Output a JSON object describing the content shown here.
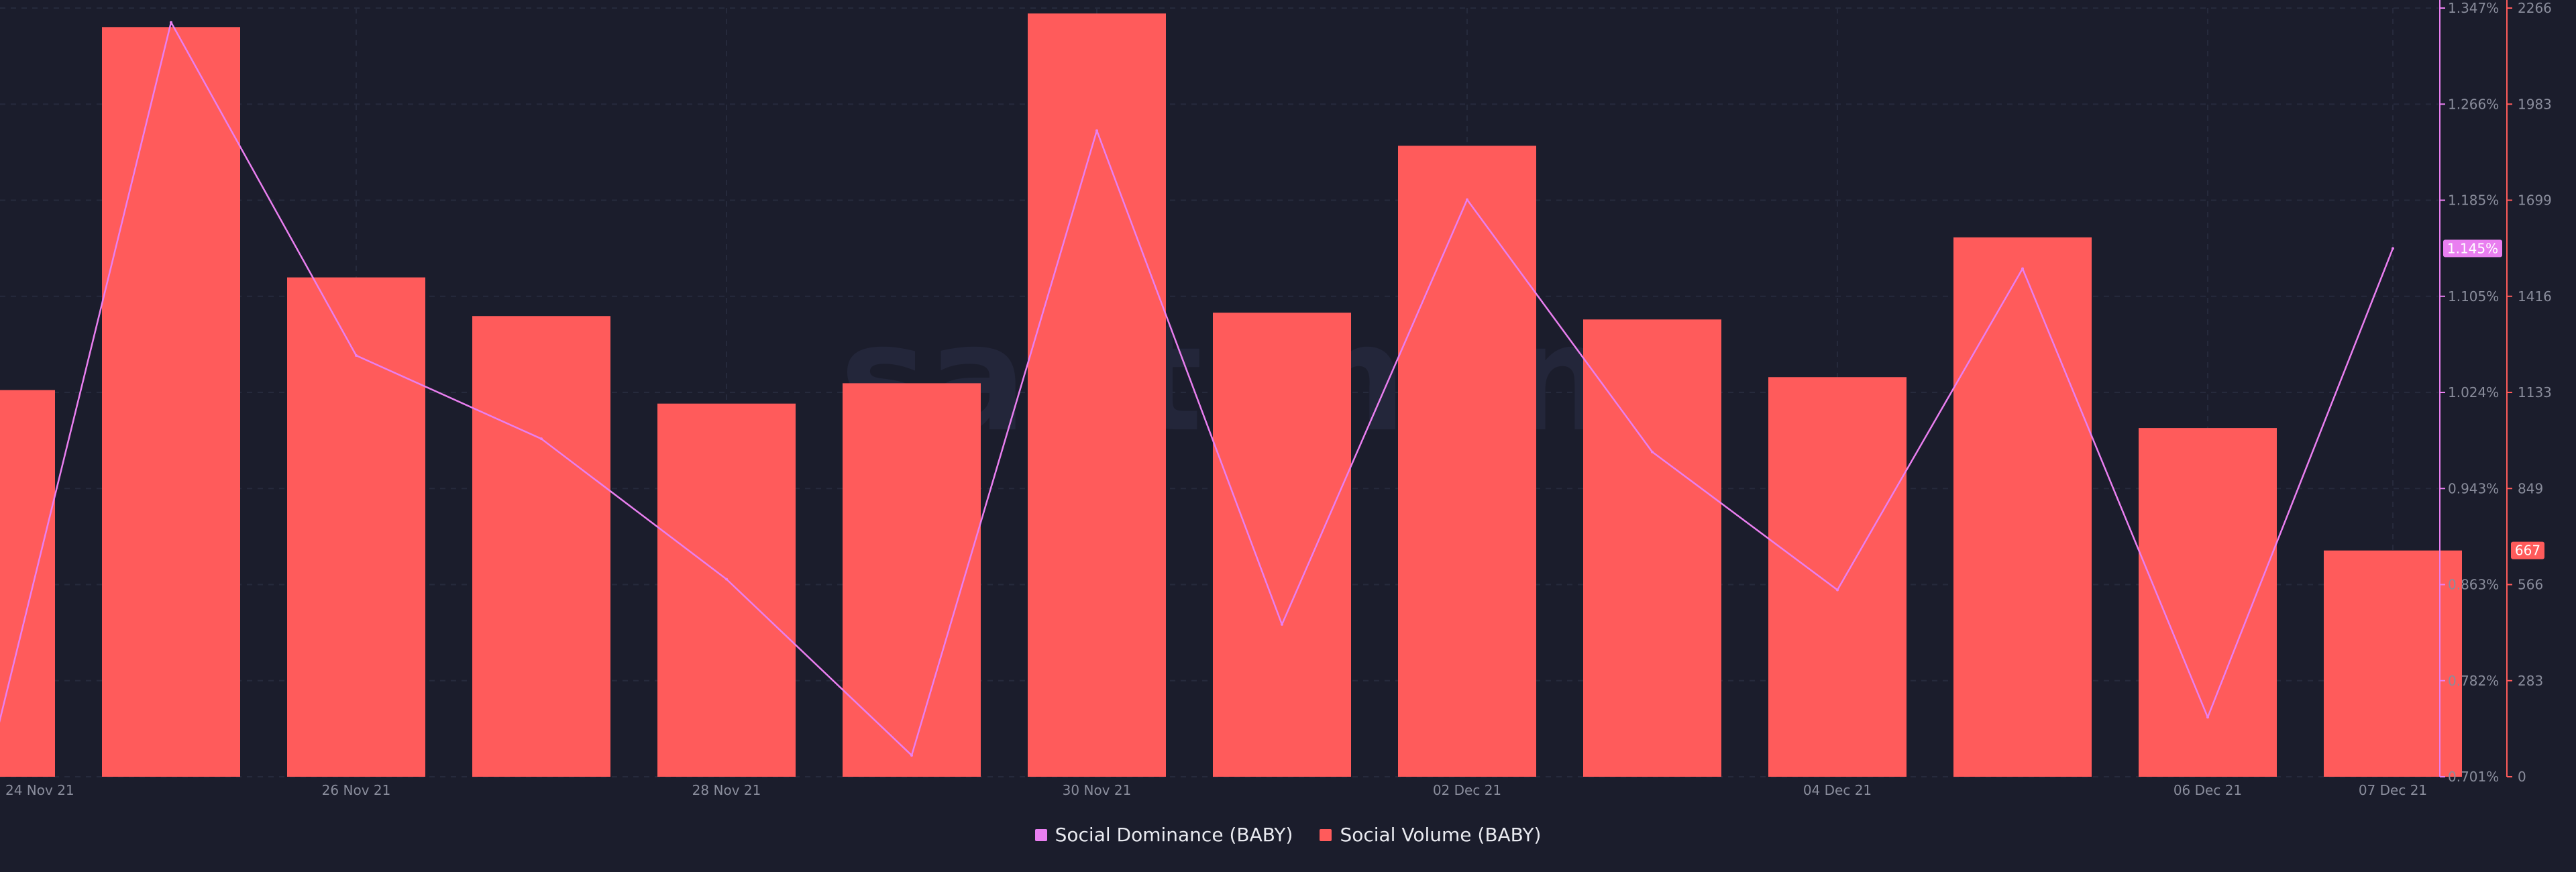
{
  "watermark": "santiment",
  "legend": [
    {
      "label": "Social Dominance (BABY)",
      "color": "#e97ff0"
    },
    {
      "label": "Social Volume (BABY)",
      "color": "#ff5b5b"
    }
  ],
  "chart_data": {
    "type": "bar",
    "title": "",
    "grid": true,
    "legend_position": "bottom-center",
    "x_tick_labels": [
      "24 Nov 21",
      "26 Nov 21",
      "28 Nov 21",
      "30 Nov 21",
      "02 Dec 21",
      "04 Dec 21",
      "06 Dec 21",
      "07 Dec 21"
    ],
    "x_tick_index": [
      0,
      2,
      4,
      6,
      8,
      10,
      12,
      13
    ],
    "categories": [
      "24 Nov 21",
      "25 Nov 21",
      "26 Nov 21",
      "27 Nov 21",
      "28 Nov 21",
      "29 Nov 21",
      "30 Nov 21",
      "01 Dec 21",
      "02 Dec 21",
      "03 Dec 21",
      "04 Dec 21",
      "05 Dec 21",
      "06 Dec 21",
      "07 Dec 21"
    ],
    "series": [
      {
        "name": "Social Volume (BABY)",
        "type": "bar",
        "axis": "right-outer",
        "color": "#ff5b5b",
        "values": [
          1140,
          2210,
          1472,
          1358,
          1100,
          1160,
          2250,
          1368,
          1860,
          1348,
          1178,
          1590,
          1028,
          667
        ]
      },
      {
        "name": "Social Dominance (BABY)",
        "type": "line",
        "axis": "right-inner",
        "color": "#e97ff0",
        "values": [
          0.701,
          1.335,
          1.055,
          0.985,
          0.867,
          0.719,
          1.244,
          0.829,
          1.186,
          0.974,
          0.858,
          1.128,
          0.751,
          1.145
        ]
      }
    ],
    "y_axis_dominance": {
      "ticks": [
        "1.347%",
        "1.266%",
        "1.185%",
        "1.105%",
        "1.024%",
        "0.943%",
        "0.863%",
        "0.782%",
        "0.701%"
      ],
      "ylim": [
        0.701,
        1.347
      ],
      "current_value_label": "1.145%",
      "color": "#e97ff0"
    },
    "y_axis_volume": {
      "ticks": [
        "2266",
        "1983",
        "1699",
        "1416",
        "1133",
        "849",
        "566",
        "283",
        "0"
      ],
      "ylim": [
        0,
        2266
      ],
      "current_value_label": "667",
      "color": "#ff5b5b"
    }
  }
}
